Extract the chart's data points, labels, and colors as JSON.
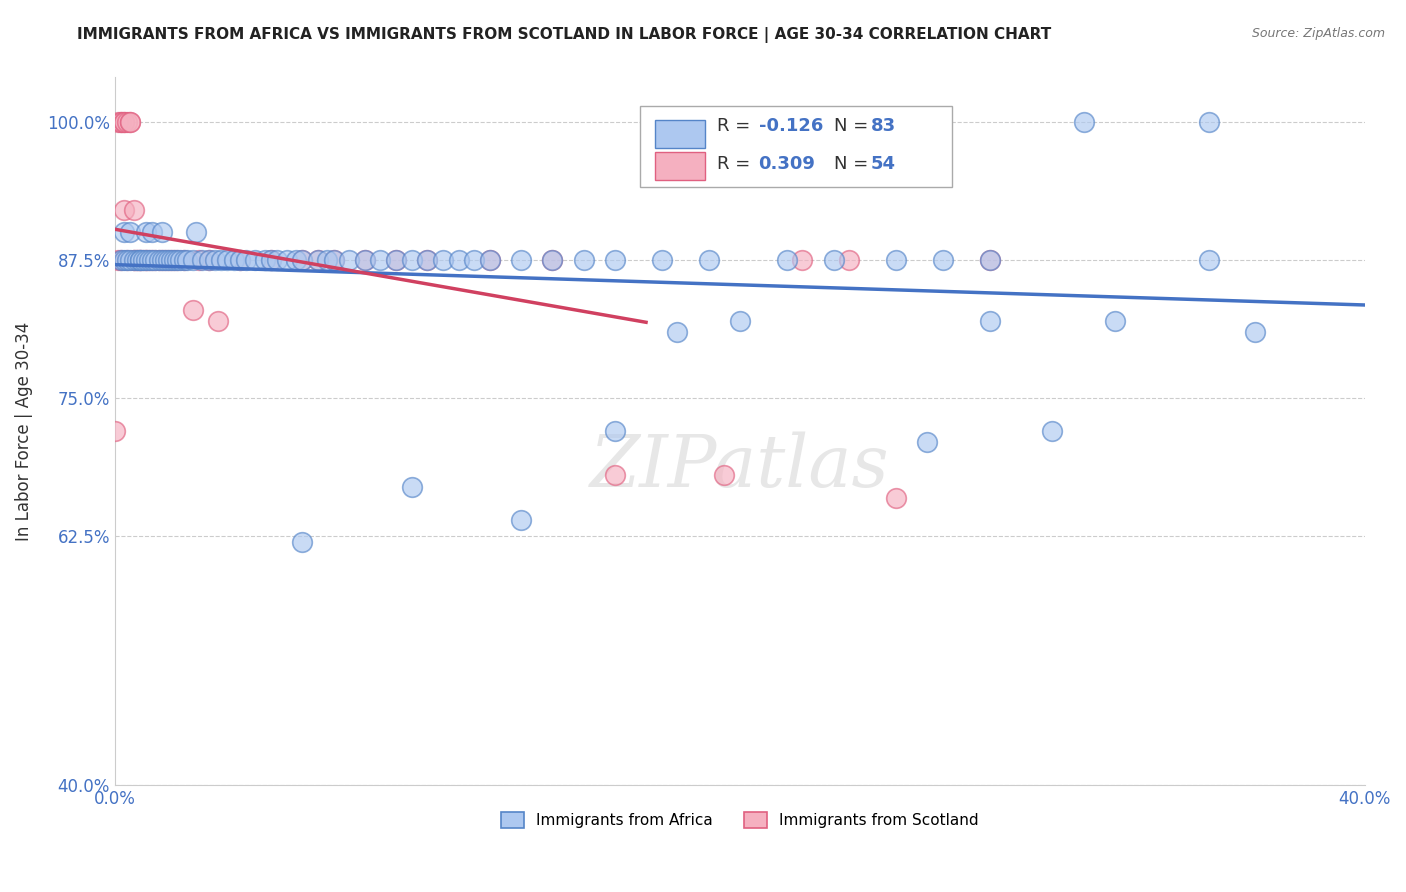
{
  "title": "IMMIGRANTS FROM AFRICA VS IMMIGRANTS FROM SCOTLAND IN LABOR FORCE | AGE 30-34 CORRELATION CHART",
  "source": "Source: ZipAtlas.com",
  "ylabel": "In Labor Force | Age 30-34",
  "xlim": [
    0.0,
    0.4
  ],
  "ylim": [
    0.4,
    1.04
  ],
  "x_ticks": [
    0.0,
    0.05,
    0.1,
    0.15,
    0.2,
    0.25,
    0.3,
    0.35,
    0.4
  ],
  "x_tick_labels": [
    "0.0%",
    "",
    "",
    "",
    "",
    "",
    "",
    "",
    "40.0%"
  ],
  "y_ticks": [
    0.4,
    0.625,
    0.75,
    0.875,
    1.0
  ],
  "y_tick_labels": [
    "40.0%",
    "62.5%",
    "75.0%",
    "87.5%",
    "100.0%"
  ],
  "africa_R": -0.126,
  "africa_N": 83,
  "scotland_R": 0.309,
  "scotland_N": 54,
  "africa_color": "#adc8f0",
  "scotland_color": "#f5b0c0",
  "africa_edge_color": "#5585c8",
  "scotland_edge_color": "#e06080",
  "africa_line_color": "#4472c4",
  "scotland_line_color": "#d04060",
  "legend_text_color": "#4472c4",
  "africa_x": [
    0.002,
    0.003,
    0.003,
    0.004,
    0.005,
    0.005,
    0.006,
    0.007,
    0.008,
    0.008,
    0.009,
    0.01,
    0.01,
    0.011,
    0.012,
    0.012,
    0.013,
    0.014,
    0.015,
    0.015,
    0.016,
    0.017,
    0.018,
    0.019,
    0.02,
    0.021,
    0.022,
    0.023,
    0.025,
    0.026,
    0.028,
    0.03,
    0.032,
    0.034,
    0.036,
    0.038,
    0.04,
    0.042,
    0.045,
    0.048,
    0.05,
    0.052,
    0.055,
    0.058,
    0.06,
    0.065,
    0.068,
    0.07,
    0.075,
    0.08,
    0.085,
    0.09,
    0.095,
    0.1,
    0.105,
    0.11,
    0.115,
    0.12,
    0.13,
    0.14,
    0.15,
    0.16,
    0.175,
    0.19,
    0.2,
    0.215,
    0.23,
    0.25,
    0.265,
    0.28,
    0.3,
    0.32,
    0.35,
    0.365,
    0.35,
    0.31,
    0.28,
    0.26,
    0.18,
    0.16,
    0.13,
    0.095,
    0.06
  ],
  "africa_y": [
    0.875,
    0.875,
    0.9,
    0.875,
    0.875,
    0.9,
    0.875,
    0.875,
    0.875,
    0.875,
    0.875,
    0.875,
    0.9,
    0.875,
    0.875,
    0.9,
    0.875,
    0.875,
    0.875,
    0.9,
    0.875,
    0.875,
    0.875,
    0.875,
    0.875,
    0.875,
    0.875,
    0.875,
    0.875,
    0.9,
    0.875,
    0.875,
    0.875,
    0.875,
    0.875,
    0.875,
    0.875,
    0.875,
    0.875,
    0.875,
    0.875,
    0.875,
    0.875,
    0.875,
    0.875,
    0.875,
    0.875,
    0.875,
    0.875,
    0.875,
    0.875,
    0.875,
    0.875,
    0.875,
    0.875,
    0.875,
    0.875,
    0.875,
    0.875,
    0.875,
    0.875,
    0.875,
    0.875,
    0.875,
    0.82,
    0.875,
    0.875,
    0.875,
    0.875,
    0.875,
    0.72,
    0.82,
    0.875,
    0.81,
    1.0,
    1.0,
    0.82,
    0.71,
    0.81,
    0.72,
    0.64,
    0.67,
    0.62
  ],
  "scotland_x": [
    0.0,
    0.001,
    0.001,
    0.002,
    0.002,
    0.002,
    0.003,
    0.003,
    0.003,
    0.004,
    0.004,
    0.005,
    0.005,
    0.006,
    0.006,
    0.006,
    0.007,
    0.007,
    0.008,
    0.008,
    0.009,
    0.01,
    0.01,
    0.011,
    0.012,
    0.013,
    0.014,
    0.015,
    0.016,
    0.017,
    0.018,
    0.019,
    0.02,
    0.022,
    0.025,
    0.027,
    0.03,
    0.033,
    0.04,
    0.05,
    0.06,
    0.065,
    0.07,
    0.08,
    0.09,
    0.1,
    0.12,
    0.14,
    0.16,
    0.195,
    0.22,
    0.235,
    0.25,
    0.28
  ],
  "scotland_y": [
    0.72,
    0.875,
    1.0,
    1.0,
    0.875,
    1.0,
    1.0,
    1.0,
    0.92,
    1.0,
    0.875,
    1.0,
    1.0,
    0.875,
    0.875,
    0.92,
    0.875,
    0.875,
    0.875,
    0.875,
    0.875,
    0.875,
    0.875,
    0.875,
    0.875,
    0.875,
    0.875,
    0.875,
    0.875,
    0.875,
    0.875,
    0.875,
    0.875,
    0.875,
    0.83,
    0.875,
    0.875,
    0.82,
    0.875,
    0.875,
    0.875,
    0.875,
    0.875,
    0.875,
    0.875,
    0.875,
    0.875,
    0.875,
    0.68,
    0.68,
    0.875,
    0.875,
    0.66,
    0.875
  ]
}
